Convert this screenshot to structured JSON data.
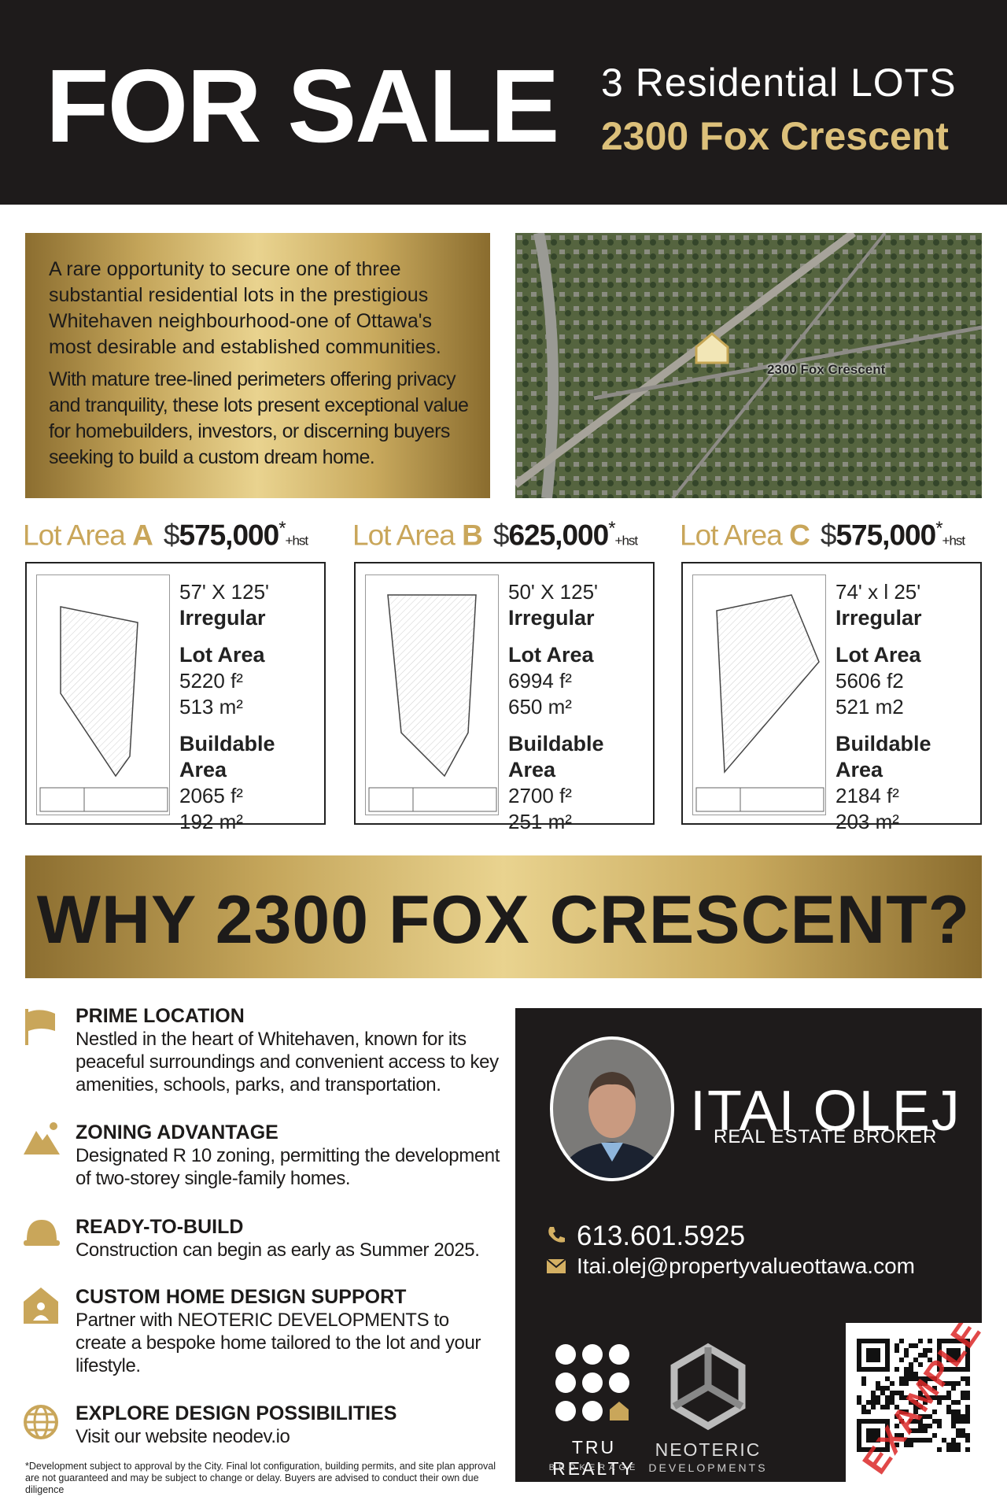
{
  "header": {
    "title": "FOR SALE",
    "subtitle": "3 Residential LOTS",
    "address": "2300 Fox Crescent"
  },
  "intro": {
    "paragraphs": [
      "A rare opportunity to secure one of three substantial residential lots in the prestigious Whitehaven neighbourhood-one of Ottawa's most desirable and established communities.",
      "With mature tree-lined perimeters offering privacy and tranquility, these lots present exceptional value for homebuilders, investors, or discerning buyers seeking to build a custom dream home."
    ]
  },
  "map": {
    "label": "2300 Fox Crescent"
  },
  "lots": [
    {
      "label": "Lot Area",
      "letter": "A",
      "currency": "$",
      "price": "575,000",
      "asterisk": "*",
      "tax": "+hst",
      "dimensions": "57' X 125'",
      "shape": "Irregular",
      "lot_area_title": "Lot Area",
      "lot_area_ft": "5220 f²",
      "lot_area_m": "513 m²",
      "buildable_title": "Buildable Area",
      "buildable_ft": "2065 f²",
      "buildable_m": "192 m²"
    },
    {
      "label": "Lot Area",
      "letter": "B",
      "currency": "$",
      "price": "625,000",
      "asterisk": "*",
      "tax": "+hst",
      "dimensions": "50' X 125'",
      "shape": "Irregular",
      "lot_area_title": "Lot Area",
      "lot_area_ft": "6994 f²",
      "lot_area_m": "650 m²",
      "buildable_title": "Buildable Area",
      "buildable_ft": "2700 f²",
      "buildable_m": "251 m²"
    },
    {
      "label": "Lot Area",
      "letter": "C",
      "currency": "$",
      "price": "575,000",
      "asterisk": "*",
      "tax": "+hst",
      "dimensions": "74' x l 25'",
      "shape": "Irregular",
      "lot_area_title": "Lot Area",
      "lot_area_ft": "5606 f2",
      "lot_area_m": "521 m2",
      "buildable_title": "Buildable Area",
      "buildable_ft": "2184 f²",
      "buildable_m": "203 m²"
    }
  ],
  "why": {
    "title": "WHY 2300 FOX CRESCENT?"
  },
  "features": [
    {
      "title": "PRIME LOCATION",
      "text": "Nestled in the heart of Whitehaven, known for its peaceful surroundings and convenient access to key amenities, schools, parks, and transportation."
    },
    {
      "title": "ZONING ADVANTAGE",
      "text": "Designated R 10 zoning, permitting the development of two-storey single-family homes."
    },
    {
      "title": "READY-TO-BUILD",
      "text": "Construction can begin as early as Summer 2025."
    },
    {
      "title": "CUSTOM HOME DESIGN SUPPORT",
      "text": "Partner with NEOTERIC DEVELOPMENTS to create a bespoke home tailored to the lot and your lifestyle."
    },
    {
      "title": "EXPLORE DESIGN POSSIBILITIES",
      "text": "Visit our website neodev.io"
    }
  ],
  "contact": {
    "name": "ITAI OLEJ",
    "role": "REAL ESTATE BROKER",
    "phone": "613.601.5925",
    "email": "Itai.olej@propertyvalueottawa.com",
    "brokerage": "TRU REALTY",
    "brokerage_sub": "BROKERAGE",
    "developer": "NEOTERIC",
    "developer_sub": "DEVELOPMENTS",
    "qr_stamp": "EXAMPLE"
  },
  "footnote": "*Development subject to approval by the City. Final lot configuration, building permits, and site plan approval are not guaranteed and may be subject to change or delay. Buyers are advised to conduct their own due diligence"
}
